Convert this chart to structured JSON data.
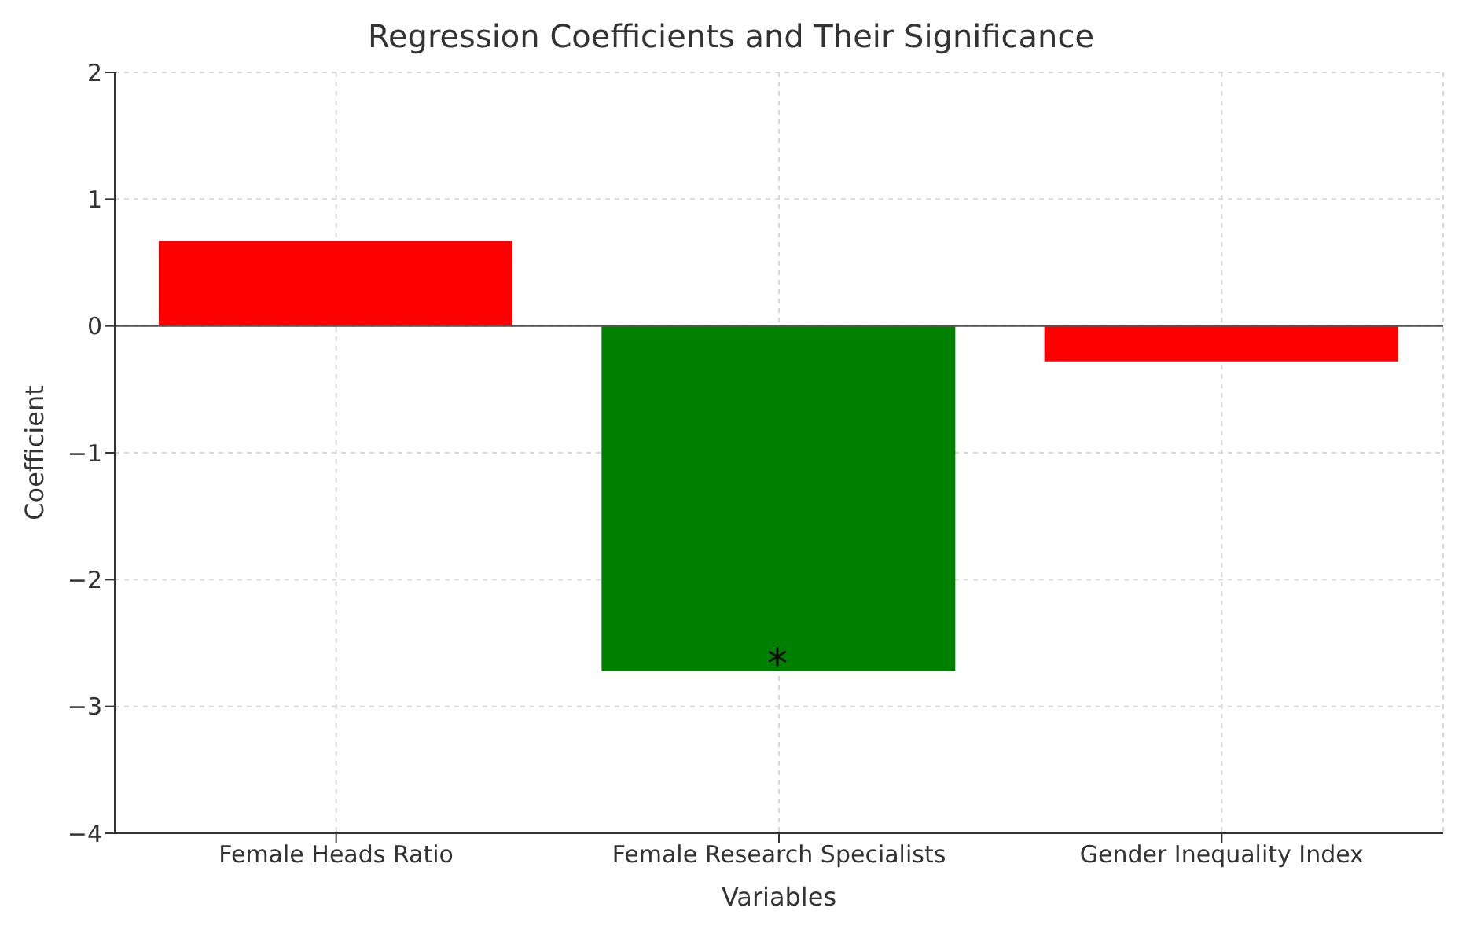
{
  "chart_data": {
    "type": "bar",
    "title": "Regression Coefficients and Their Significance",
    "xlabel": "Variables",
    "ylabel": "Coefficient",
    "categories": [
      "Female Heads Ratio",
      "Female Research Specialists",
      "Gender Inequality Index"
    ],
    "values": [
      0.67,
      -2.72,
      -0.28
    ],
    "colors": [
      "#ff0000",
      "#008000",
      "#ff0000"
    ],
    "ylim": [
      -4,
      2
    ],
    "yticks": [
      -4,
      -3,
      -2,
      -1,
      0,
      1,
      2
    ],
    "grid": true,
    "ref_lines": [
      {
        "axis": "y",
        "value": 0,
        "color": "#555555"
      }
    ],
    "annotations": [
      "*"
    ]
  }
}
